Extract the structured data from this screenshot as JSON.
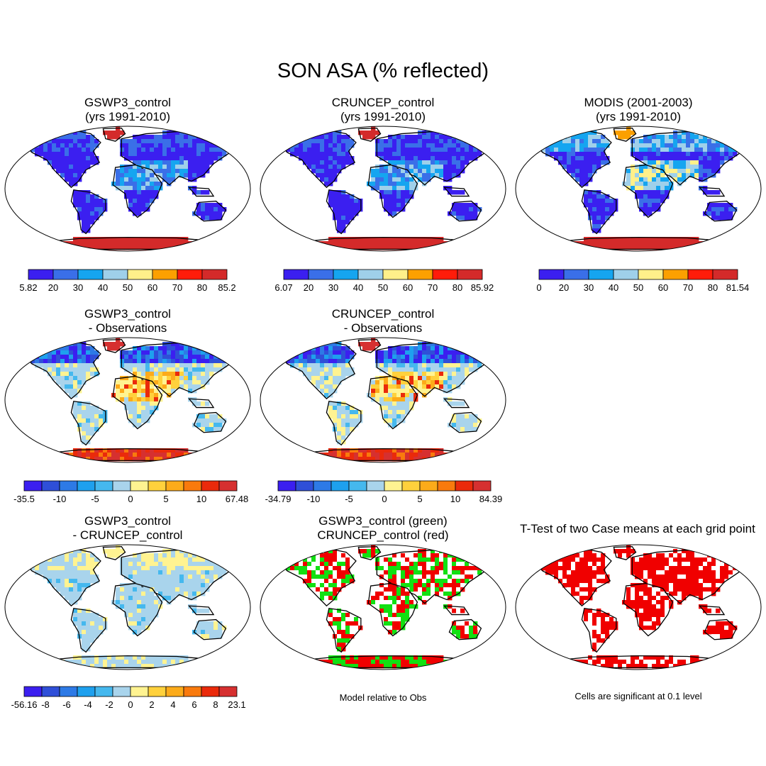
{
  "title": "SON ASA (% reflected)",
  "colors": {
    "abs": [
      "#3b1ff0",
      "#3a6fe8",
      "#15a5f0",
      "#9fd0ea",
      "#fff08a",
      "#fca000",
      "#ff1c0a",
      "#d42a2a"
    ],
    "diff": [
      "#3b1ff0",
      "#2f4fd8",
      "#2d7ae6",
      "#1ea0ee",
      "#45b8ee",
      "#a9d4ec",
      "#fff391",
      "#ffd13c",
      "#fcab1a",
      "#f97a0d",
      "#ea2a0b",
      "#d63030"
    ],
    "diff3": [
      "#3b1ff0",
      "#2f4fd8",
      "#2d7ae6",
      "#1ea0ee",
      "#45b8ee",
      "#a9d4ec",
      "#fff391",
      "#ffd13c",
      "#fcab1a",
      "#f97a0d",
      "#ea2a0b",
      "#d63030"
    ],
    "green": "#12e012",
    "red": "#f00000",
    "coast": "#000000"
  },
  "panels": [
    {
      "id": "p1",
      "title": [
        "GSWP3_control",
        "(yrs 1991-2010)"
      ],
      "scheme": "abs",
      "cbar": {
        "palette": "abs",
        "ticks": [
          "5.82",
          "20",
          "30",
          "40",
          "50",
          "60",
          "70",
          "80",
          "85.2"
        ]
      }
    },
    {
      "id": "p2",
      "title": [
        "CRUNCEP_control",
        "(yrs 1991-2010)"
      ],
      "scheme": "abs",
      "cbar": {
        "palette": "abs",
        "ticks": [
          "6.07",
          "20",
          "30",
          "40",
          "50",
          "60",
          "70",
          "80",
          "85.92"
        ]
      }
    },
    {
      "id": "p3",
      "title": [
        "MODIS (2001-2003)",
        "(yrs 1991-2010)"
      ],
      "scheme": "absobs",
      "cbar": {
        "palette": "abs",
        "ticks": [
          "0",
          "20",
          "30",
          "40",
          "50",
          "60",
          "70",
          "80",
          "81.54"
        ]
      }
    },
    {
      "id": "p4",
      "title": [
        "GSWP3_control",
        "- Observations"
      ],
      "scheme": "diff",
      "cbar": {
        "palette": "diff",
        "ticks": [
          "-35.5",
          "-10",
          "-5",
          "0",
          "5",
          "10",
          "67.48"
        ]
      }
    },
    {
      "id": "p5",
      "title": [
        "CRUNCEP_control",
        "- Observations"
      ],
      "scheme": "diff",
      "cbar": {
        "palette": "diff",
        "ticks": [
          "-34.79",
          "-10",
          "-5",
          "0",
          "5",
          "10",
          "84.39"
        ]
      }
    },
    {
      "id": "p6",
      "title": [
        "GSWP3_control",
        "- CRUNCEP_control"
      ],
      "scheme": "diff3",
      "cbar": {
        "palette": "diff3",
        "ticks": [
          "-56.16",
          "-8",
          "-6",
          "-4",
          "-2",
          "0",
          "2",
          "4",
          "6",
          "8",
          "23.1"
        ]
      }
    },
    {
      "id": "p7",
      "title": [
        "GSWP3_control (green)",
        "CRUNCEP_control (red)"
      ],
      "scheme": "gr",
      "note": "Model relative to Obs"
    },
    {
      "id": "p8",
      "title": [
        "T-Test of two Case means at each grid point"
      ],
      "scheme": "ttest",
      "note": "Cells are significant at 0.1 level"
    }
  ]
}
